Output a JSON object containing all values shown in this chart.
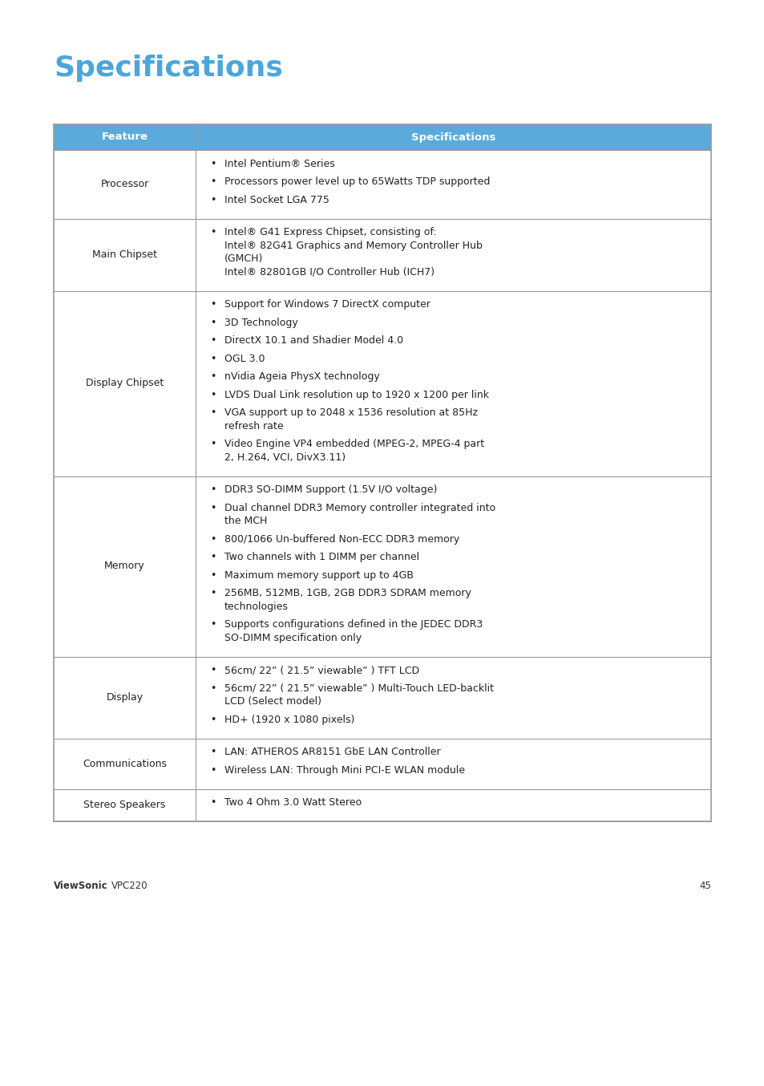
{
  "title": "Specifications",
  "title_color": "#4da6d9",
  "title_fontsize": 26,
  "header_bg_color": "#5aabdc",
  "header_text_color": "#ffffff",
  "header_feature": "Feature",
  "header_spec": "Specifications",
  "border_color": "#999999",
  "cell_bg_color": "#ffffff",
  "text_color": "#222222",
  "footer_bold": "ViewSonic",
  "footer_page": "45",
  "page_bg": "#ffffff",
  "rows": [
    {
      "feature": "Processor",
      "specs": [
        [
          "Intel Pentium® Series"
        ],
        [
          "Processors power level up to 65Watts TDP supported"
        ],
        [
          "Intel Socket LGA 775"
        ]
      ]
    },
    {
      "feature": "Main Chipset",
      "specs": [
        [
          "Intel® G41 Express Chipset, consisting of:",
          "Intel® 82G41 Graphics and Memory Controller Hub",
          "(GMCH)",
          "Intel® 82801GB I/O Controller Hub (ICH7)"
        ]
      ]
    },
    {
      "feature": "Display Chipset",
      "specs": [
        [
          "Support for Windows 7 DirectX computer"
        ],
        [
          "3D Technology"
        ],
        [
          "DirectX 10.1 and Shadier Model 4.0"
        ],
        [
          "OGL 3.0"
        ],
        [
          "nVidia Ageia PhysX technology"
        ],
        [
          "LVDS Dual Link resolution up to 1920 x 1200 per link"
        ],
        [
          "VGA support up to 2048 x 1536 resolution at 85Hz",
          "refresh rate"
        ],
        [
          "Video Engine VP4 embedded (MPEG-2, MPEG-4 part",
          "2, H.264, VCI, DivX3.11)"
        ]
      ]
    },
    {
      "feature": "Memory",
      "specs": [
        [
          "DDR3 SO-DIMM Support (1.5V I/O voltage)"
        ],
        [
          "Dual channel DDR3 Memory controller integrated into",
          "the MCH"
        ],
        [
          "800/1066 Un-buffered Non-ECC DDR3 memory"
        ],
        [
          "Two channels with 1 DIMM per channel"
        ],
        [
          "Maximum memory support up to 4GB"
        ],
        [
          "256MB, 512MB, 1GB, 2GB DDR3 SDRAM memory",
          "technologies"
        ],
        [
          "Supports configurations defined in the JEDEC DDR3",
          "SO-DIMM specification only"
        ]
      ]
    },
    {
      "feature": "Display",
      "specs": [
        [
          "56cm/ 22” ( 21.5” viewable” ) TFT LCD"
        ],
        [
          "56cm/ 22” ( 21.5” viewable” ) Multi-Touch LED-backlit",
          "LCD (Select model)"
        ],
        [
          "HD+ (1920 x 1080 pixels)"
        ]
      ]
    },
    {
      "feature": "Communications",
      "specs": [
        [
          "LAN: ATHEROS AR8151 GbE LAN Controller"
        ],
        [
          "Wireless LAN: Through Mini PCI-E WLAN module"
        ]
      ]
    },
    {
      "feature": "Stereo Speakers",
      "specs": [
        [
          "Two 4 Ohm 3.0 Watt Stereo"
        ]
      ]
    }
  ]
}
